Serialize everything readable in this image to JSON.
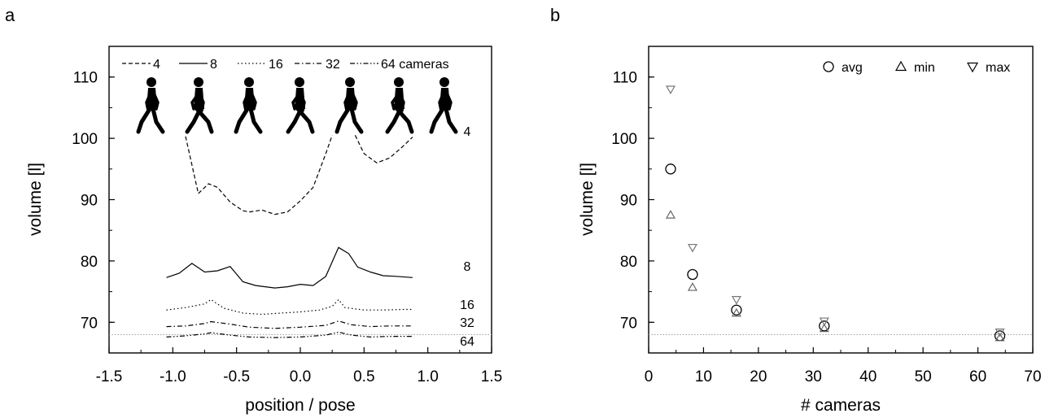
{
  "panels": {
    "a": {
      "letter": "a"
    },
    "b": {
      "letter": "b"
    }
  },
  "chart_data": [
    {
      "type": "line",
      "xlabel": "position / pose",
      "ylabel": "volume [l]",
      "xlim": [
        -1.5,
        1.5
      ],
      "ylim": [
        65,
        115
      ],
      "xticks": [
        "-1.5",
        "-1.0",
        "-0.5",
        "0.0",
        "0.5",
        "1.0",
        "1.5"
      ],
      "yticks": [
        "70",
        "80",
        "90",
        "100",
        "110"
      ],
      "legend_position": "top",
      "legend": [
        "4",
        "8",
        "16",
        "32",
        "64 cameras"
      ],
      "reference_line_y": 68,
      "pose_silhouettes": 7,
      "series": [
        {
          "name": "4",
          "end_label": "4",
          "style": "dashed",
          "x": [
            -0.9,
            -0.8,
            -0.72,
            -0.65,
            -0.55,
            -0.45,
            -0.4,
            -0.3,
            -0.2,
            -0.1,
            0.0,
            0.1,
            0.2,
            0.25,
            null,
            0.43,
            0.5,
            0.6,
            0.7,
            0.8,
            0.88
          ],
          "y": [
            100.3,
            91.0,
            92.6,
            92.0,
            89.6,
            88.2,
            88.0,
            88.3,
            87.6,
            88.0,
            89.8,
            92.0,
            97.5,
            100.5,
            null,
            100.5,
            97.5,
            96.0,
            96.8,
            98.6,
            100.2
          ]
        },
        {
          "name": "8",
          "end_label": "8",
          "style": "solid",
          "x": [
            -1.05,
            -0.95,
            -0.85,
            -0.75,
            -0.65,
            -0.55,
            -0.45,
            -0.35,
            -0.2,
            -0.1,
            0.0,
            0.1,
            0.2,
            0.3,
            0.38,
            0.45,
            0.55,
            0.65,
            0.75,
            0.88
          ],
          "y": [
            77.3,
            78.0,
            79.6,
            78.2,
            78.4,
            79.1,
            76.6,
            76.0,
            75.6,
            75.8,
            76.2,
            76.0,
            77.5,
            82.2,
            81.2,
            79.0,
            78.2,
            77.6,
            77.5,
            77.3
          ]
        },
        {
          "name": "16",
          "end_label": "16",
          "style": "dotted",
          "x": [
            -1.05,
            -0.9,
            -0.75,
            -0.7,
            -0.6,
            -0.45,
            -0.3,
            -0.15,
            0.0,
            0.15,
            0.25,
            0.3,
            0.35,
            0.5,
            0.65,
            0.8,
            0.88
          ],
          "y": [
            72.0,
            72.4,
            73.0,
            73.7,
            72.3,
            71.5,
            71.3,
            71.5,
            71.7,
            72.0,
            72.6,
            73.7,
            72.4,
            72.0,
            72.0,
            72.1,
            72.1
          ]
        },
        {
          "name": "32",
          "end_label": "32",
          "style": "dash-dot",
          "x": [
            -1.05,
            -0.9,
            -0.75,
            -0.7,
            -0.55,
            -0.4,
            -0.2,
            0.0,
            0.2,
            0.3,
            0.4,
            0.55,
            0.7,
            0.88
          ],
          "y": [
            69.3,
            69.4,
            69.8,
            70.1,
            69.7,
            69.2,
            69.0,
            69.2,
            69.5,
            70.2,
            69.6,
            69.3,
            69.4,
            69.4
          ]
        },
        {
          "name": "64 cameras",
          "end_label": "64",
          "style": "dash-dot-dot",
          "x": [
            -1.05,
            -0.9,
            -0.75,
            -0.7,
            -0.55,
            -0.4,
            -0.2,
            0.0,
            0.2,
            0.3,
            0.4,
            0.55,
            0.7,
            0.88
          ],
          "y": [
            67.6,
            67.8,
            68.1,
            68.3,
            67.9,
            67.6,
            67.5,
            67.6,
            67.9,
            68.4,
            67.9,
            67.6,
            67.7,
            67.7
          ]
        }
      ]
    },
    {
      "type": "scatter",
      "xlabel": "# cameras",
      "ylabel": "volume [l]",
      "xlim": [
        0,
        70
      ],
      "ylim": [
        65,
        115
      ],
      "xticks": [
        "0",
        "10",
        "20",
        "30",
        "40",
        "50",
        "60",
        "70"
      ],
      "yticks": [
        "70",
        "80",
        "90",
        "100",
        "110"
      ],
      "legend_position": "top-right",
      "reference_line_y": 68,
      "series": [
        {
          "name": "avg",
          "marker": "circle",
          "x": [
            4,
            8,
            16,
            32,
            64
          ],
          "y": [
            95.0,
            77.8,
            72.0,
            69.4,
            67.8
          ]
        },
        {
          "name": "min",
          "marker": "triangle-up",
          "x": [
            4,
            8,
            16,
            32,
            64
          ],
          "y": [
            87.5,
            75.7,
            71.5,
            69.0,
            67.5
          ]
        },
        {
          "name": "max",
          "marker": "triangle-down",
          "x": [
            4,
            8,
            16,
            32,
            64
          ],
          "y": [
            108.0,
            82.2,
            73.7,
            70.2,
            68.4
          ]
        }
      ]
    }
  ]
}
